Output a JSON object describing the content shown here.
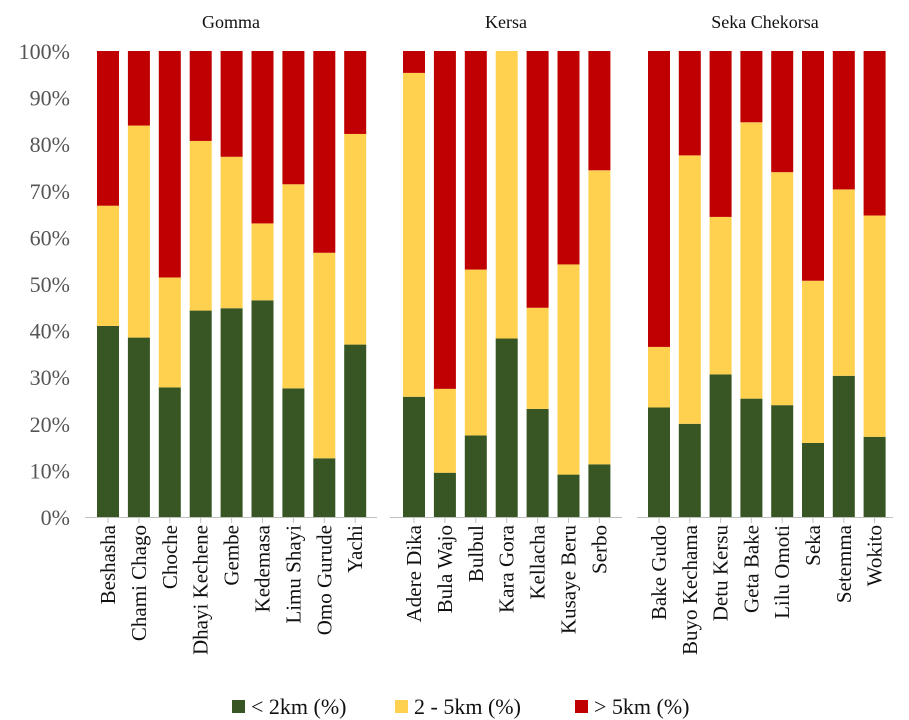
{
  "chart_data": {
    "type": "bar",
    "stacked": true,
    "percent": true,
    "ylim": [
      0,
      100
    ],
    "y_ticks": [
      "0%",
      "10%",
      "20%",
      "30%",
      "40%",
      "50%",
      "60%",
      "70%",
      "80%",
      "90%",
      "100%"
    ],
    "grid": false,
    "legend_position": "bottom",
    "groups": [
      {
        "name": "Gomma",
        "categories": [
          "Beshasha",
          "Chami Chago",
          "Choche",
          "Dhayi Kechene",
          "Gembe",
          "Kedemasa",
          "Limu Shayi",
          "Omo Gurude",
          "Yachi"
        ],
        "series": [
          {
            "name": "< 2km (%)",
            "values": [
              41,
              38.5,
              27.8,
              44.3,
              44.8,
              46.5,
              27.6,
              12.6,
              37
            ]
          },
          {
            "name": "2 - 5km (%)",
            "values": [
              25.8,
              45.5,
              23.6,
              36.4,
              32.5,
              16.5,
              43.8,
              44.1,
              45.2
            ]
          },
          {
            "name": "> 5km (%)",
            "values": [
              33.2,
              16,
              48.6,
              19.3,
              22.7,
              37,
              28.6,
              43.3,
              17.8
            ]
          }
        ]
      },
      {
        "name": "Kersa",
        "categories": [
          "Adere Dika",
          "Bula Wajo",
          "Bulbul",
          "Kara Gora",
          "Kellacha",
          "Kusaye Beru",
          "Serbo"
        ],
        "series": [
          {
            "name": "< 2km (%)",
            "values": [
              25.8,
              9.5,
              17.5,
              38.3,
              23.2,
              9.1,
              11.3
            ]
          },
          {
            "name": "2 - 5km (%)",
            "values": [
              69.5,
              18,
              35.6,
              61.7,
              21.7,
              45.1,
              63.1
            ]
          },
          {
            "name": "> 5km (%)",
            "values": [
              4.7,
              72.5,
              46.9,
              0,
              55.1,
              45.8,
              25.6
            ]
          }
        ]
      },
      {
        "name": "Seka Chekorsa",
        "categories": [
          "Bake Gudo",
          "Buyo Kechama",
          "Detu Kersu",
          "Geta Bake",
          "Lilu Omoti",
          "Seka",
          "Setemma",
          "Wokito"
        ],
        "series": [
          {
            "name": "< 2km (%)",
            "values": [
              23.5,
              20,
              30.6,
              25.4,
              24,
              15.9,
              30.3,
              17.2
            ]
          },
          {
            "name": "2 - 5km (%)",
            "values": [
              13,
              57.6,
              33.8,
              59.3,
              50,
              34.8,
              40,
              47.5
            ]
          },
          {
            "name": "> 5km (%)",
            "values": [
              63.5,
              22.4,
              35.6,
              15.3,
              26,
              49.3,
              29.7,
              35.3
            ]
          }
        ]
      }
    ],
    "legend": [
      {
        "name": "< 2km (%)",
        "color": "#375623"
      },
      {
        "name": "2 - 5km (%)",
        "color": "#FFD14F"
      },
      {
        "name": "> 5km (%)",
        "color": "#C00000"
      }
    ]
  }
}
